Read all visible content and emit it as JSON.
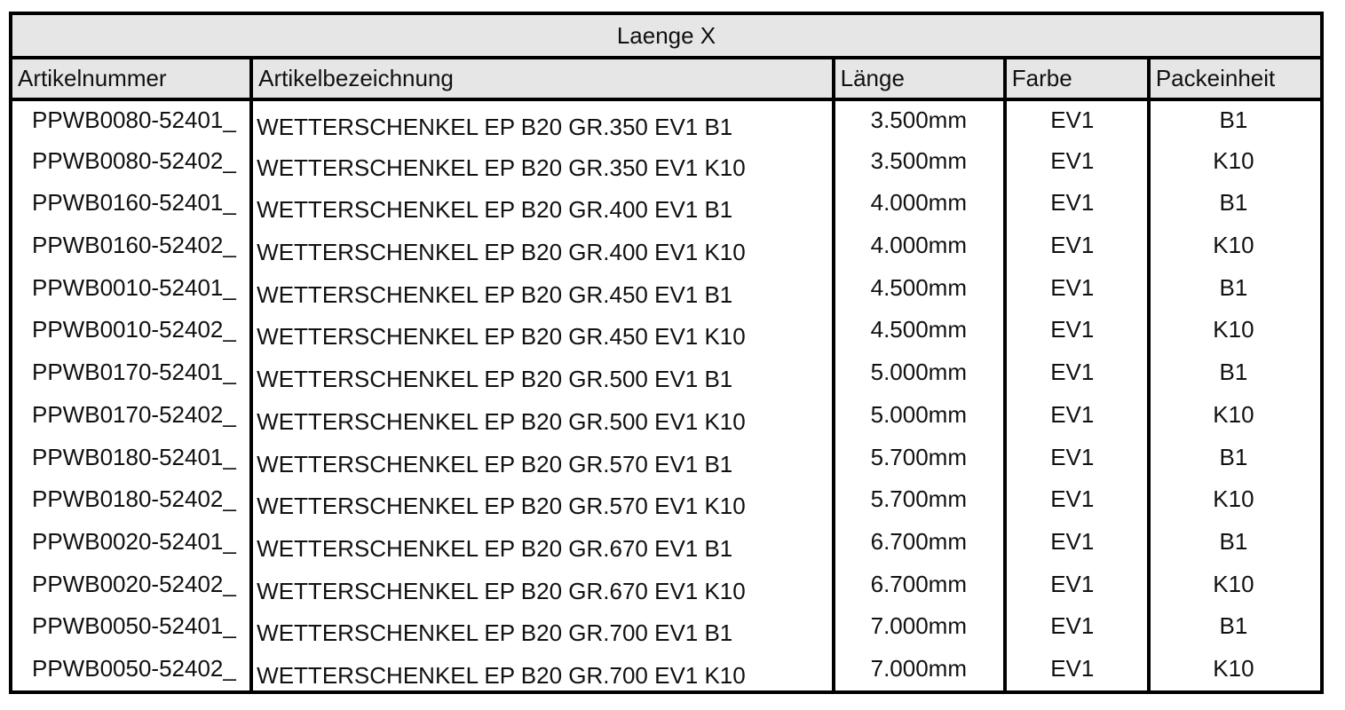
{
  "table": {
    "title": "Laenge X",
    "headers": [
      "Artikelnummer",
      "Artikelbezeichnung",
      "Länge",
      "Farbe",
      "Packeinheit"
    ],
    "rows": [
      [
        "PPWB0080-52401_",
        "WETTERSCHENKEL EP B20 GR.350 EV1 B1",
        "3.500mm",
        "EV1",
        "B1"
      ],
      [
        "PPWB0080-52402_",
        "WETTERSCHENKEL EP B20 GR.350 EV1 K10",
        "3.500mm",
        "EV1",
        "K10"
      ],
      [
        "PPWB0160-52401_",
        "WETTERSCHENKEL EP B20 GR.400 EV1 B1",
        "4.000mm",
        "EV1",
        "B1"
      ],
      [
        "PPWB0160-52402_",
        "WETTERSCHENKEL EP B20 GR.400 EV1 K10",
        "4.000mm",
        "EV1",
        "K10"
      ],
      [
        "PPWB0010-52401_",
        "WETTERSCHENKEL EP B20 GR.450 EV1 B1",
        "4.500mm",
        "EV1",
        "B1"
      ],
      [
        "PPWB0010-52402_",
        "WETTERSCHENKEL EP B20 GR.450 EV1 K10",
        "4.500mm",
        "EV1",
        "K10"
      ],
      [
        "PPWB0170-52401_",
        "WETTERSCHENKEL EP B20 GR.500 EV1 B1",
        "5.000mm",
        "EV1",
        "B1"
      ],
      [
        "PPWB0170-52402_",
        "WETTERSCHENKEL EP B20 GR.500 EV1 K10",
        "5.000mm",
        "EV1",
        "K10"
      ],
      [
        "PPWB0180-52401_",
        "WETTERSCHENKEL EP B20 GR.570 EV1 B1",
        "5.700mm",
        "EV1",
        "B1"
      ],
      [
        "PPWB0180-52402_",
        "WETTERSCHENKEL EP B20 GR.570 EV1 K10",
        "5.700mm",
        "EV1",
        "K10"
      ],
      [
        "PPWB0020-52401_",
        "WETTERSCHENKEL EP B20 GR.670 EV1 B1",
        "6.700mm",
        "EV1",
        "B1"
      ],
      [
        "PPWB0020-52402_",
        "WETTERSCHENKEL EP B20 GR.670 EV1 K10",
        "6.700mm",
        "EV1",
        "K10"
      ],
      [
        "PPWB0050-52401_",
        "WETTERSCHENKEL EP B20 GR.700 EV1 B1",
        "7.000mm",
        "EV1",
        "B1"
      ],
      [
        "PPWB0050-52402_",
        "WETTERSCHENKEL EP B20 GR.700 EV1 K10",
        "7.000mm",
        "EV1",
        "K10"
      ]
    ]
  }
}
